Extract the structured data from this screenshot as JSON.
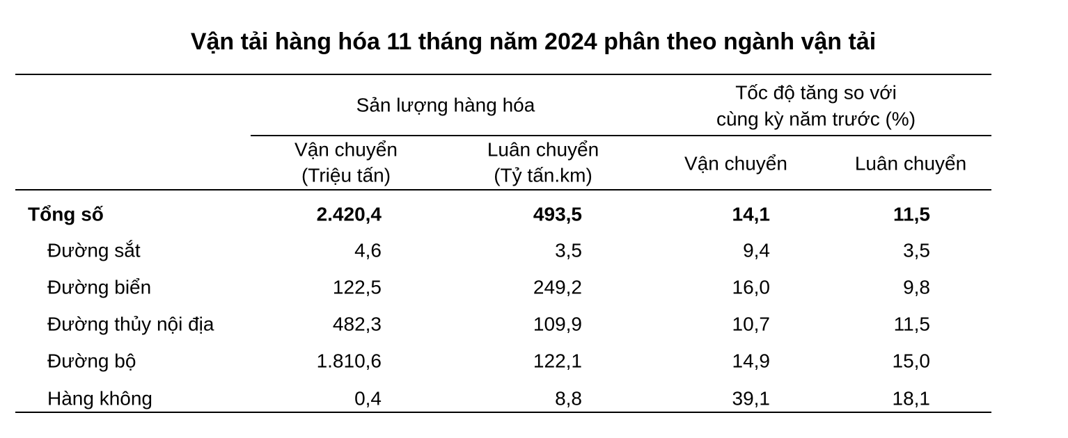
{
  "title": "Vận tải hàng hóa 11 tháng năm 2024 phân theo ngành vận tải",
  "table": {
    "header": {
      "group1": "Sản lượng hàng hóa",
      "group2": [
        "Tốc độ tăng so với",
        "cùng kỳ năm trước (%)"
      ],
      "columns": [
        [
          "Vận chuyển",
          "(Triệu tấn)"
        ],
        [
          "Luân chuyển",
          "(Tỷ tấn.km)"
        ],
        [
          "Vận chuyển"
        ],
        [
          "Luân chuyển"
        ]
      ]
    },
    "rows": [
      [
        "Tổng số",
        "2.420,4",
        "493,5",
        "14,1",
        "11,5"
      ],
      [
        "Đường sắt",
        "4,6",
        "3,5",
        "9,4",
        "3,5"
      ],
      [
        "Đường biển",
        "122,5",
        "249,2",
        "16,0",
        "9,8"
      ],
      [
        "Đường thủy nội địa",
        "482,3",
        "109,9",
        "10,7",
        "11,5"
      ],
      [
        "Đường bộ",
        "1.810,6",
        "122,1",
        "14,9",
        "15,0"
      ],
      [
        "Hàng không",
        "0,4",
        "8,8",
        "39,1",
        "18,1"
      ]
    ]
  }
}
